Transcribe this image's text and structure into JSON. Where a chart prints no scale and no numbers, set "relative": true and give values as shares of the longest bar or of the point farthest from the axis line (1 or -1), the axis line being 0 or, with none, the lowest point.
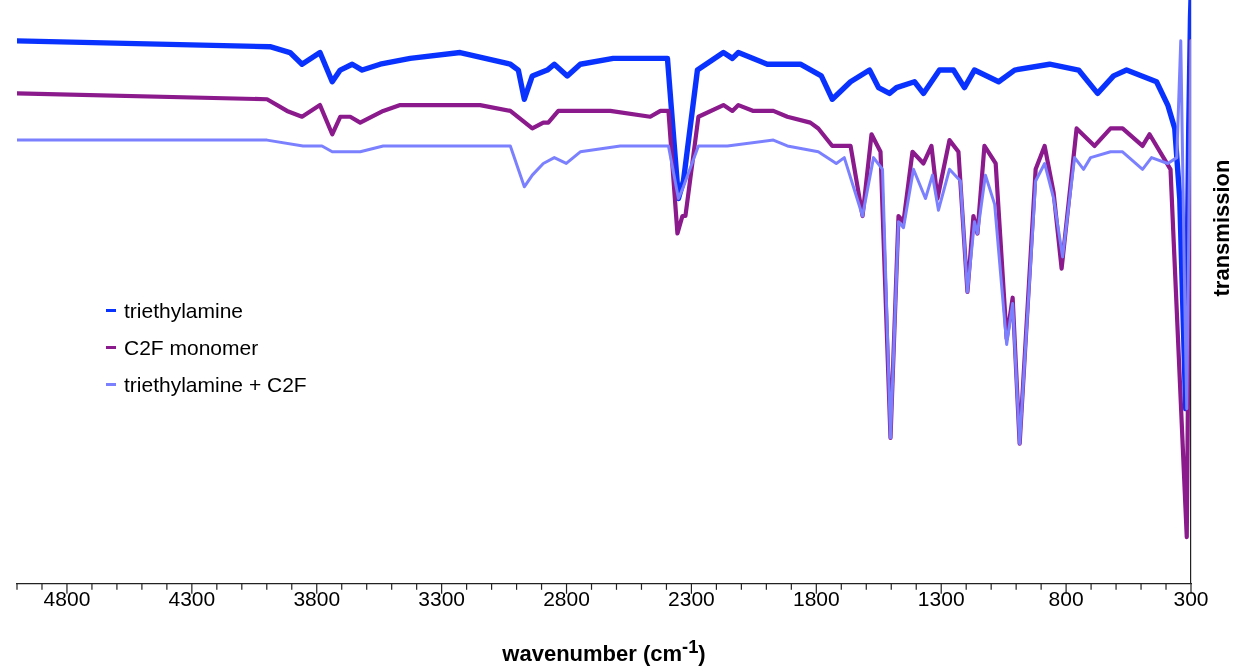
{
  "chart_data": {
    "type": "line",
    "relative": true,
    "xlabel": "wavenumber (cm$^{-1}$)",
    "ylabel": "transmission",
    "legend": "left",
    "xlim": [
      5000,
      300
    ],
    "xticks": [
      {
        "value": 5000,
        "label": null
      },
      {
        "value": 4900,
        "label": null
      },
      4800,
      {
        "value": 4700,
        "label": null
      },
      {
        "value": 4600,
        "label": null
      },
      {
        "value": 4500,
        "label": null
      },
      {
        "value": 4400,
        "label": null
      },
      4300,
      {
        "value": 4200,
        "label": null
      },
      {
        "value": 4100,
        "label": null
      },
      {
        "value": 4000,
        "label": null
      },
      {
        "value": 3900,
        "label": null
      },
      3800,
      {
        "value": 3700,
        "label": null
      },
      {
        "value": 3600,
        "label": null
      },
      {
        "value": 3500,
        "label": null
      },
      {
        "value": 3400,
        "label": null
      },
      3300,
      {
        "value": 3200,
        "label": null
      },
      {
        "value": 3100,
        "label": null
      },
      {
        "value": 3000,
        "label": null
      },
      {
        "value": 2900,
        "label": null
      },
      2800,
      {
        "value": 2700,
        "label": null
      },
      {
        "value": 2600,
        "label": null
      },
      {
        "value": 2500,
        "label": null
      },
      {
        "value": 2400,
        "label": null
      },
      2300,
      {
        "value": 2200,
        "label": null
      },
      {
        "value": 2100,
        "label": null
      },
      {
        "value": 2000,
        "label": null
      },
      {
        "value": 1900,
        "label": null
      },
      1800,
      {
        "value": 1700,
        "label": null
      },
      {
        "value": 1600,
        "label": null
      },
      {
        "value": 1500,
        "label": null
      },
      {
        "value": 1400,
        "label": null
      },
      1300,
      {
        "value": 1200,
        "label": null
      },
      {
        "value": 1100,
        "label": null
      },
      {
        "value": 1000,
        "label": null
      },
      {
        "value": 900,
        "label": null
      },
      800,
      {
        "value": 700,
        "label": null
      },
      {
        "value": 600,
        "label": null
      },
      {
        "value": 500,
        "label": null
      },
      {
        "value": 400,
        "label": null
      },
      300
    ],
    "series": [
      {
        "name": "triethylamine",
        "color": "#0a32ff",
        "x": [
          5000,
          3987,
          3907,
          3859,
          3787,
          3738,
          3706,
          3658,
          3618,
          3546,
          3426,
          3226,
          3025,
          2993,
          2969,
          2937,
          2877,
          2849,
          2797,
          2745,
          2613,
          2396,
          2352,
          2332,
          2276,
          2172,
          2136,
          2112,
          1996,
          1864,
          1780,
          1736,
          1663,
          1587,
          1551,
          1507,
          1479,
          1407,
          1371,
          1307,
          1251,
          1207,
          1167,
          1070,
          1006,
          866,
          750,
          674,
          610,
          558,
          438,
          393,
          365,
          345,
          321,
          309,
          302,
          300
        ],
        "values": [
          0.93,
          0.92,
          0.91,
          0.89,
          0.91,
          0.86,
          0.88,
          0.89,
          0.88,
          0.89,
          0.9,
          0.91,
          0.89,
          0.88,
          0.83,
          0.87,
          0.88,
          0.89,
          0.87,
          0.89,
          0.9,
          0.9,
          0.66,
          0.69,
          0.88,
          0.91,
          0.9,
          0.91,
          0.89,
          0.89,
          0.87,
          0.83,
          0.86,
          0.88,
          0.85,
          0.84,
          0.85,
          0.86,
          0.84,
          0.88,
          0.88,
          0.85,
          0.88,
          0.86,
          0.88,
          0.89,
          0.88,
          0.84,
          0.87,
          0.88,
          0.86,
          0.82,
          0.78,
          0.66,
          0.3,
          0.78,
          0.97,
          1
        ]
      },
      {
        "name": "C2F monomer",
        "color": "#8b1a8c",
        "x": [
          5000,
          3999,
          3919,
          3859,
          3787,
          3738,
          3706,
          3666,
          3626,
          3534,
          3466,
          3398,
          3146,
          3025,
          2937,
          2893,
          2873,
          2833,
          2693,
          2665,
          2625,
          2465,
          2424,
          2392,
          2356,
          2336,
          2324,
          2272,
          2172,
          2136,
          2112,
          2052,
          1972,
          1916,
          1824,
          1792,
          1736,
          1663,
          1615,
          1579,
          1543,
          1503,
          1471,
          1451,
          1415,
          1371,
          1339,
          1315,
          1267,
          1231,
          1195,
          1171,
          1155,
          1127,
          1082,
          1038,
          1014,
          986,
          922,
          886,
          850,
          818,
          758,
          686,
          622,
          574,
          494,
          466,
          382,
          317,
          300
        ],
        "values": [
          0.84,
          0.83,
          0.81,
          0.8,
          0.82,
          0.77,
          0.8,
          0.8,
          0.79,
          0.81,
          0.82,
          0.82,
          0.82,
          0.81,
          0.78,
          0.79,
          0.79,
          0.81,
          0.81,
          0.81,
          0.81,
          0.8,
          0.81,
          0.81,
          0.6,
          0.63,
          0.63,
          0.8,
          0.82,
          0.81,
          0.82,
          0.81,
          0.81,
          0.8,
          0.79,
          0.78,
          0.75,
          0.75,
          0.63,
          0.77,
          0.74,
          0.25,
          0.63,
          0.62,
          0.74,
          0.72,
          0.75,
          0.66,
          0.76,
          0.74,
          0.5,
          0.63,
          0.6,
          0.75,
          0.72,
          0.42,
          0.49,
          0.24,
          0.71,
          0.75,
          0.67,
          0.54,
          0.78,
          0.75,
          0.78,
          0.78,
          0.75,
          0.77,
          0.71,
          0.08,
          0.93
        ]
      },
      {
        "name": "triethylamine + C2F",
        "color": "#7b80ff",
        "x": [
          5000,
          3999,
          3855,
          3779,
          3738,
          3626,
          3534,
          3466,
          3134,
          3025,
          2969,
          2937,
          2893,
          2849,
          2801,
          2745,
          2585,
          2453,
          2392,
          2352,
          2332,
          2272,
          2156,
          1972,
          1916,
          1792,
          1720,
          1688,
          1615,
          1571,
          1535,
          1503,
          1471,
          1451,
          1411,
          1363,
          1335,
          1311,
          1267,
          1223,
          1195,
          1167,
          1155,
          1123,
          1086,
          1038,
          1014,
          986,
          922,
          886,
          850,
          814,
          766,
          730,
          702,
          622,
          574,
          494,
          458,
          393,
          357,
          341,
          325,
          317,
          300
        ],
        "values": [
          0.76,
          0.76,
          0.75,
          0.75,
          0.74,
          0.74,
          0.75,
          0.75,
          0.75,
          0.75,
          0.68,
          0.7,
          0.72,
          0.73,
          0.72,
          0.74,
          0.75,
          0.75,
          0.75,
          0.66,
          0.68,
          0.75,
          0.75,
          0.76,
          0.75,
          0.74,
          0.72,
          0.73,
          0.63,
          0.73,
          0.71,
          0.25,
          0.62,
          0.61,
          0.71,
          0.66,
          0.7,
          0.64,
          0.71,
          0.69,
          0.5,
          0.62,
          0.6,
          0.7,
          0.65,
          0.41,
          0.48,
          0.24,
          0.69,
          0.72,
          0.66,
          0.56,
          0.73,
          0.71,
          0.73,
          0.74,
          0.74,
          0.71,
          0.73,
          0.72,
          0.73,
          0.93,
          0.49,
          0.3,
          0.93
        ]
      }
    ]
  }
}
